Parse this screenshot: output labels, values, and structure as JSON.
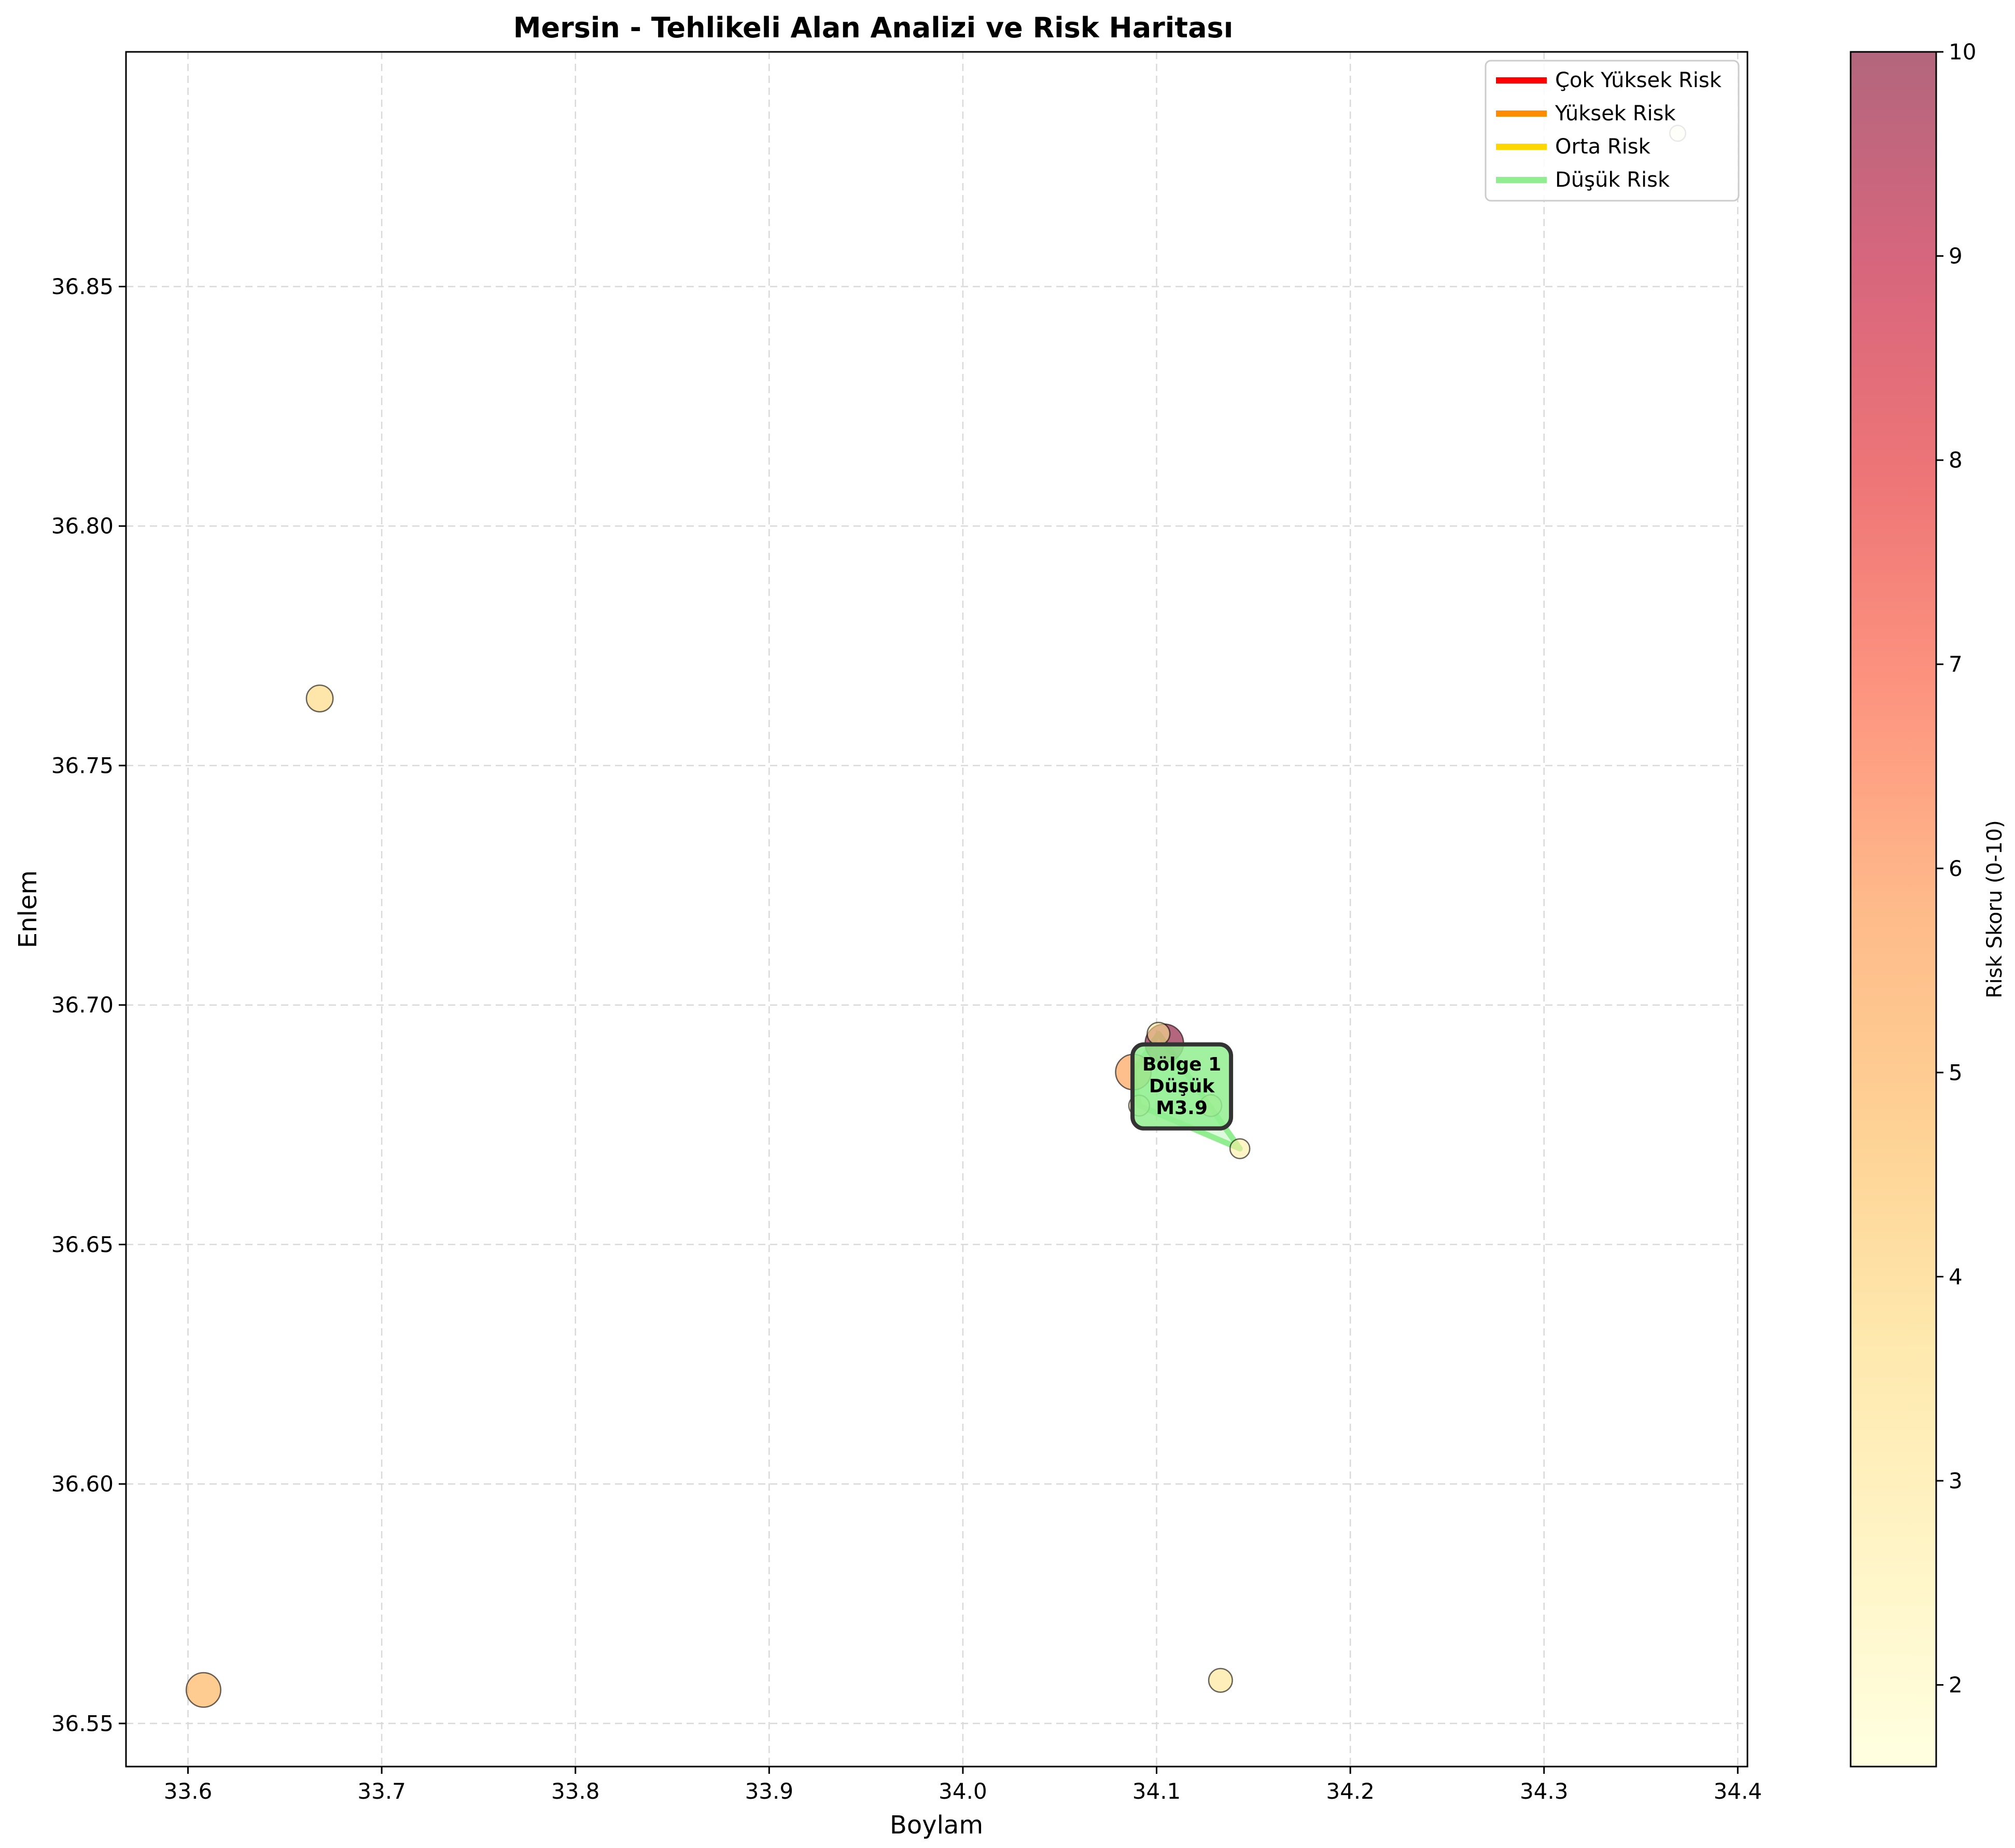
{
  "chart_data": {
    "type": "scatter",
    "title": "Mersin - Tehlikeli Alan Analizi ve Risk Haritası",
    "xlabel": "Boylam",
    "ylabel": "Enlem",
    "xlim": [
      33.568,
      34.405
    ],
    "ylim": [
      36.541,
      36.899
    ],
    "xticks": [
      33.6,
      33.7,
      33.8,
      33.9,
      34.0,
      34.1,
      34.2,
      34.3,
      34.4
    ],
    "xtick_labels": [
      "33.6",
      "33.7",
      "33.8",
      "33.9",
      "34.0",
      "34.1",
      "34.2",
      "34.3",
      "34.4"
    ],
    "yticks": [
      36.55,
      36.6,
      36.65,
      36.7,
      36.75,
      36.8,
      36.85
    ],
    "ytick_labels": [
      "36.55",
      "36.60",
      "36.65",
      "36.70",
      "36.75",
      "36.80",
      "36.85"
    ],
    "grid": true,
    "legend_position": "top-right",
    "legend": [
      {
        "label": "Çok Yüksek Risk",
        "color": "#ff0000"
      },
      {
        "label": "Yüksek Risk",
        "color": "#ff8c00"
      },
      {
        "label": "Orta Risk",
        "color": "#ffd700"
      },
      {
        "label": "Düşük Risk",
        "color": "#90ee90"
      }
    ],
    "colorbar": {
      "label": "Risk Skoru (0-10)",
      "range": [
        1.6,
        10
      ],
      "ticks": [
        2,
        3,
        4,
        5,
        6,
        7,
        8,
        9,
        10
      ],
      "tick_labels": [
        "2",
        "3",
        "4",
        "5",
        "6",
        "7",
        "8",
        "9",
        "10"
      ],
      "colormap": "YlOrRd (alpha 0.6)"
    },
    "points": [
      {
        "lon": 33.608,
        "lat": 36.557,
        "risk": 5.0,
        "magnitude": 3.5
      },
      {
        "lon": 33.668,
        "lat": 36.764,
        "risk": 3.8,
        "magnitude": 2.7
      },
      {
        "lon": 34.133,
        "lat": 36.559,
        "risk": 3.2,
        "magnitude": 2.4
      },
      {
        "lon": 34.369,
        "lat": 36.882,
        "risk": 1.7,
        "magnitude": 1.6
      },
      {
        "lon": 34.104,
        "lat": 36.692,
        "risk": 10.0,
        "magnitude": 3.9
      },
      {
        "lon": 34.088,
        "lat": 36.686,
        "risk": 5.6,
        "magnitude": 3.6
      },
      {
        "lon": 34.101,
        "lat": 36.694,
        "risk": 3.0,
        "magnitude": 2.3
      },
      {
        "lon": 34.091,
        "lat": 36.679,
        "risk": 2.8,
        "magnitude": 2.1
      },
      {
        "lon": 34.128,
        "lat": 36.679,
        "risk": 3.0,
        "magnitude": 2.2
      },
      {
        "lon": 34.143,
        "lat": 36.67,
        "risk": 2.6,
        "magnitude": 2.0
      }
    ],
    "clusters": [
      {
        "label_lines": [
          "Bölge 1",
          "Düşük",
          "M3.9"
        ],
        "color": "#90ee90",
        "hull": [
          [
            34.101,
            36.694
          ],
          [
            34.143,
            36.67
          ],
          [
            34.091,
            36.679
          ],
          [
            34.088,
            36.686
          ]
        ],
        "label_at": [
          34.113,
          36.683
        ]
      }
    ]
  }
}
